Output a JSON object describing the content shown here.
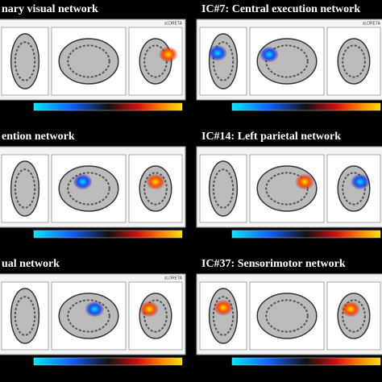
{
  "panels": [
    {
      "title": "nary visual network",
      "software": "sLORETA"
    },
    {
      "title": "IC#7: Central execution network",
      "software": "sLORETA"
    },
    {
      "title": "ention network"
    },
    {
      "title": "IC#14: Left parietal network"
    },
    {
      "title": "ual network",
      "software": "sLORETA"
    },
    {
      "title": "IC#37: Sensorimotor network"
    }
  ]
}
